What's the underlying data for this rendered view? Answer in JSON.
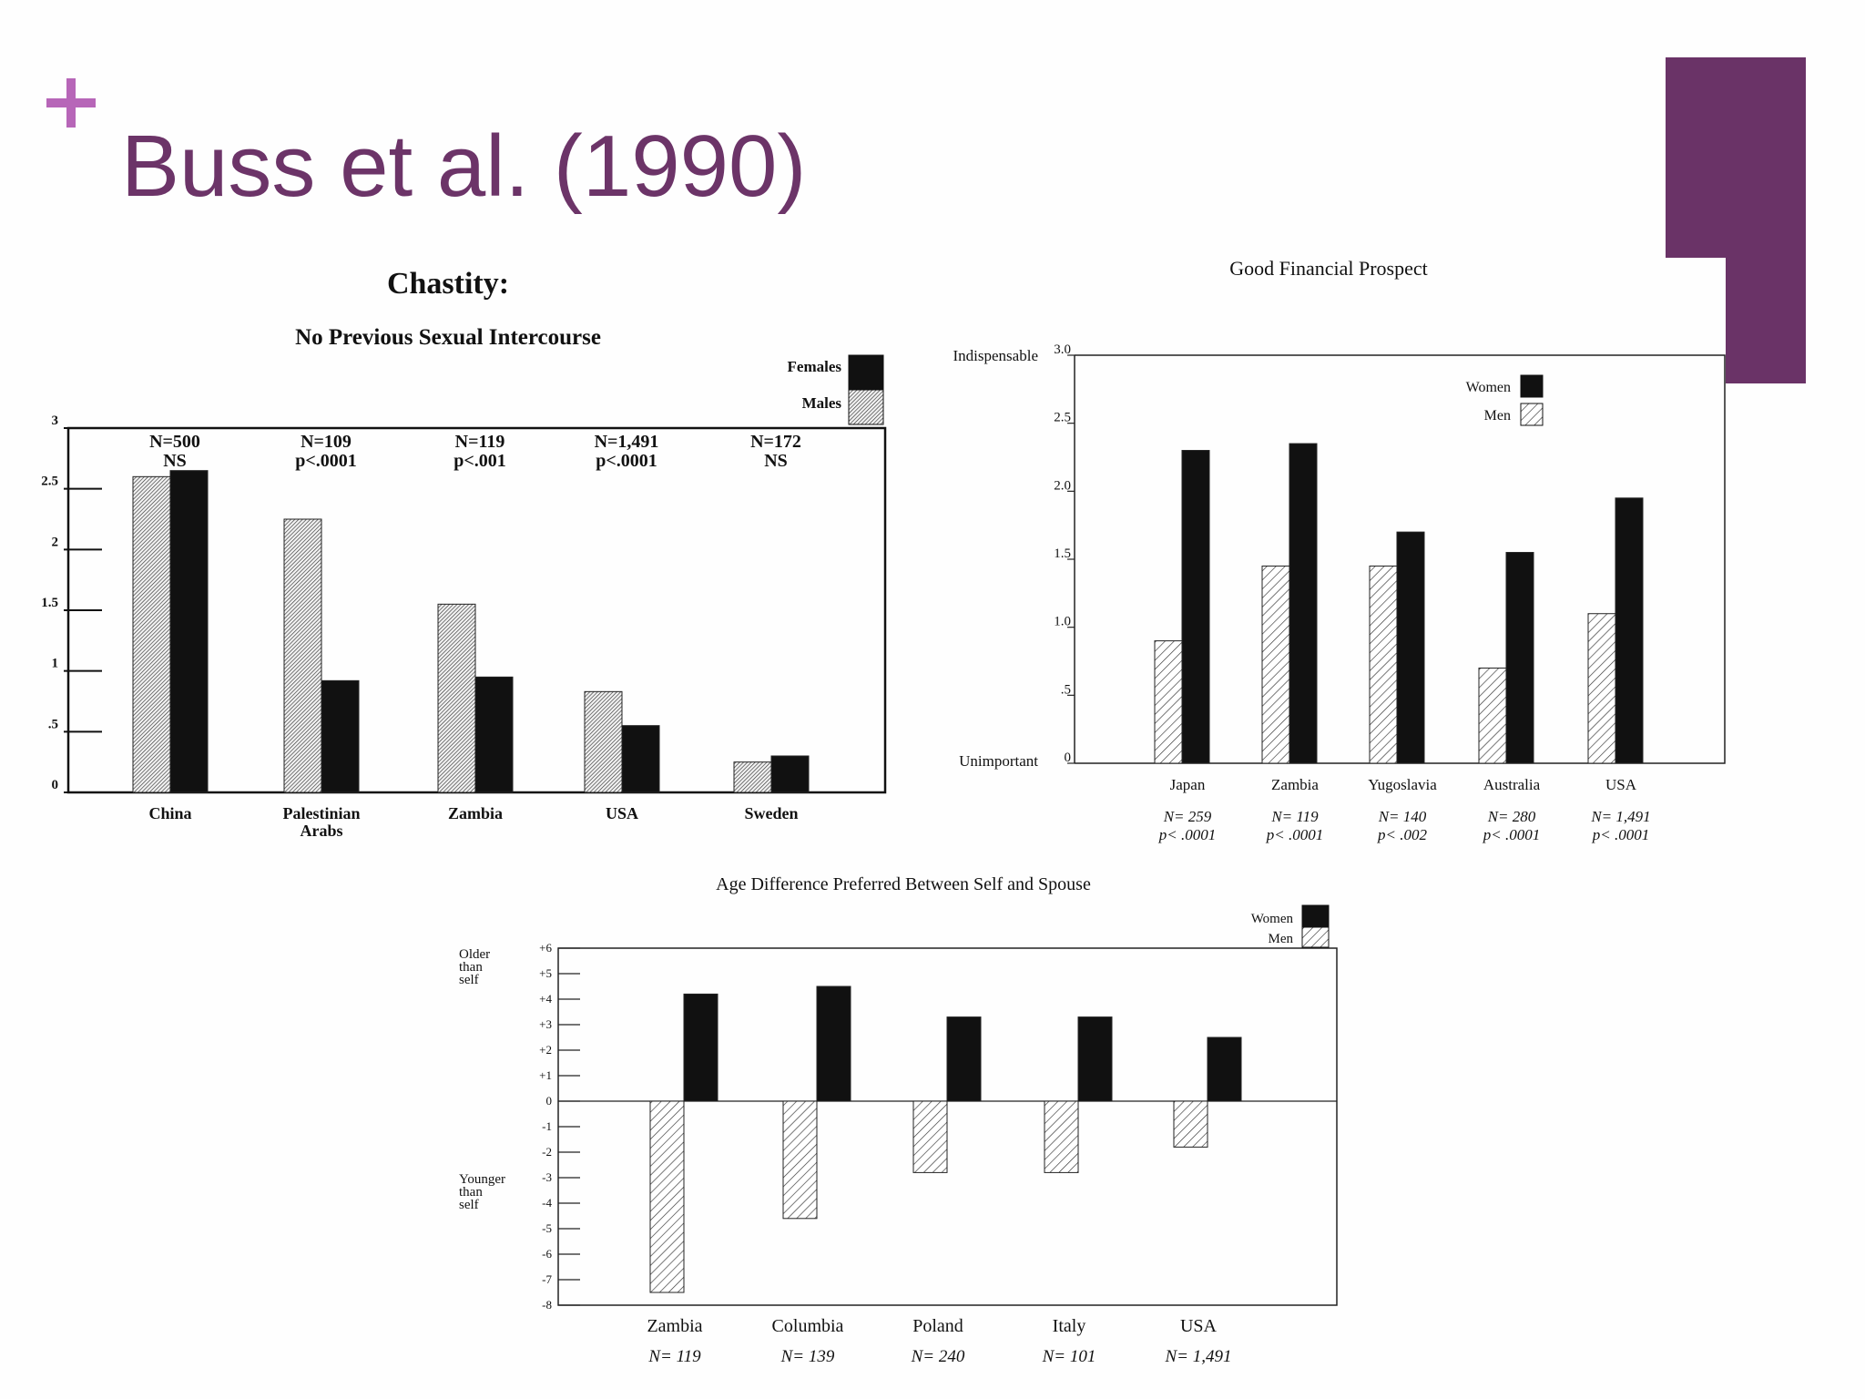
{
  "slide": {
    "title": "Buss et al. (1990)",
    "plus_icon": "plus-icon",
    "accent_color": "#b766b8",
    "title_color": "#6c3468",
    "brand_color": "#6a3367"
  },
  "chart_data": [
    {
      "type": "bar",
      "title": "Chastity:",
      "subtitle": "No Previous Sexual Intercourse",
      "categories": [
        "China",
        "Palestinian\nArabs",
        "Zambia",
        "USA",
        "Sweden"
      ],
      "annotations": [
        [
          "N=500",
          "NS"
        ],
        [
          "N=109",
          "p<.0001"
        ],
        [
          "N=119",
          "p<.001"
        ],
        [
          "N=1,491",
          "p<.0001"
        ],
        [
          "N=172",
          "NS"
        ]
      ],
      "series": [
        {
          "name": "Males",
          "values": [
            2.6,
            2.25,
            1.55,
            0.83,
            0.25
          ],
          "fill": "hatch"
        },
        {
          "name": "Females",
          "values": [
            2.65,
            0.92,
            0.95,
            0.55,
            0.3
          ],
          "fill": "#111111"
        }
      ],
      "yticks": [
        "0",
        ".5",
        "1",
        "1.5",
        "2",
        "2.5",
        "3"
      ],
      "ylim": [
        0,
        3
      ],
      "legend": "top-right",
      "grid": false
    },
    {
      "type": "bar",
      "title": "Good Financial Prospect",
      "categories": [
        "Japan",
        "Zambia",
        "Yugoslavia",
        "Australia",
        "USA"
      ],
      "annotations": [
        [
          "N= 259",
          "p< .0001"
        ],
        [
          "N= 119",
          "p< .0001"
        ],
        [
          "N= 140",
          "p< .002"
        ],
        [
          "N= 280",
          "p< .0001"
        ],
        [
          "N= 1,491",
          "p< .0001"
        ]
      ],
      "series": [
        {
          "name": "Men",
          "values": [
            0.9,
            1.45,
            1.45,
            0.7,
            1.1
          ],
          "fill": "hatch"
        },
        {
          "name": "Women",
          "values": [
            2.3,
            2.35,
            1.7,
            1.55,
            1.95
          ],
          "fill": "#111111"
        }
      ],
      "yticks": [
        "0",
        ".5",
        "1.0",
        "1.5",
        "2.0",
        "2.5",
        "3.0"
      ],
      "y_end_labels": {
        "top": "Indispensable",
        "bottom": "Unimportant"
      },
      "ylim": [
        0,
        3
      ],
      "legend": "top-right",
      "grid": false
    },
    {
      "type": "bar",
      "title": "Age Difference Preferred Between Self and Spouse",
      "categories": [
        "Zambia",
        "Columbia",
        "Poland",
        "Italy",
        "USA"
      ],
      "annotations": [
        "N= 119",
        "N= 139",
        "N= 240",
        "N= 101",
        "N= 1,491"
      ],
      "series": [
        {
          "name": "Men",
          "values": [
            -7.5,
            -4.6,
            -2.8,
            -2.8,
            -1.8
          ],
          "fill": "hatch"
        },
        {
          "name": "Women",
          "values": [
            4.2,
            4.5,
            3.3,
            3.3,
            2.5
          ],
          "fill": "#111111"
        }
      ],
      "yticks": [
        "-8",
        "-7",
        "-6",
        "-5",
        "-4",
        "-3",
        "-2",
        "-1",
        "0",
        "+1",
        "+2",
        "+3",
        "+4",
        "+5",
        "+6"
      ],
      "y_end_labels": {
        "top": "Older\nthan\nself",
        "bottom": "Younger\nthan\nself"
      },
      "ylim": [
        -8,
        6
      ],
      "legend": "top-right",
      "grid": false
    }
  ]
}
